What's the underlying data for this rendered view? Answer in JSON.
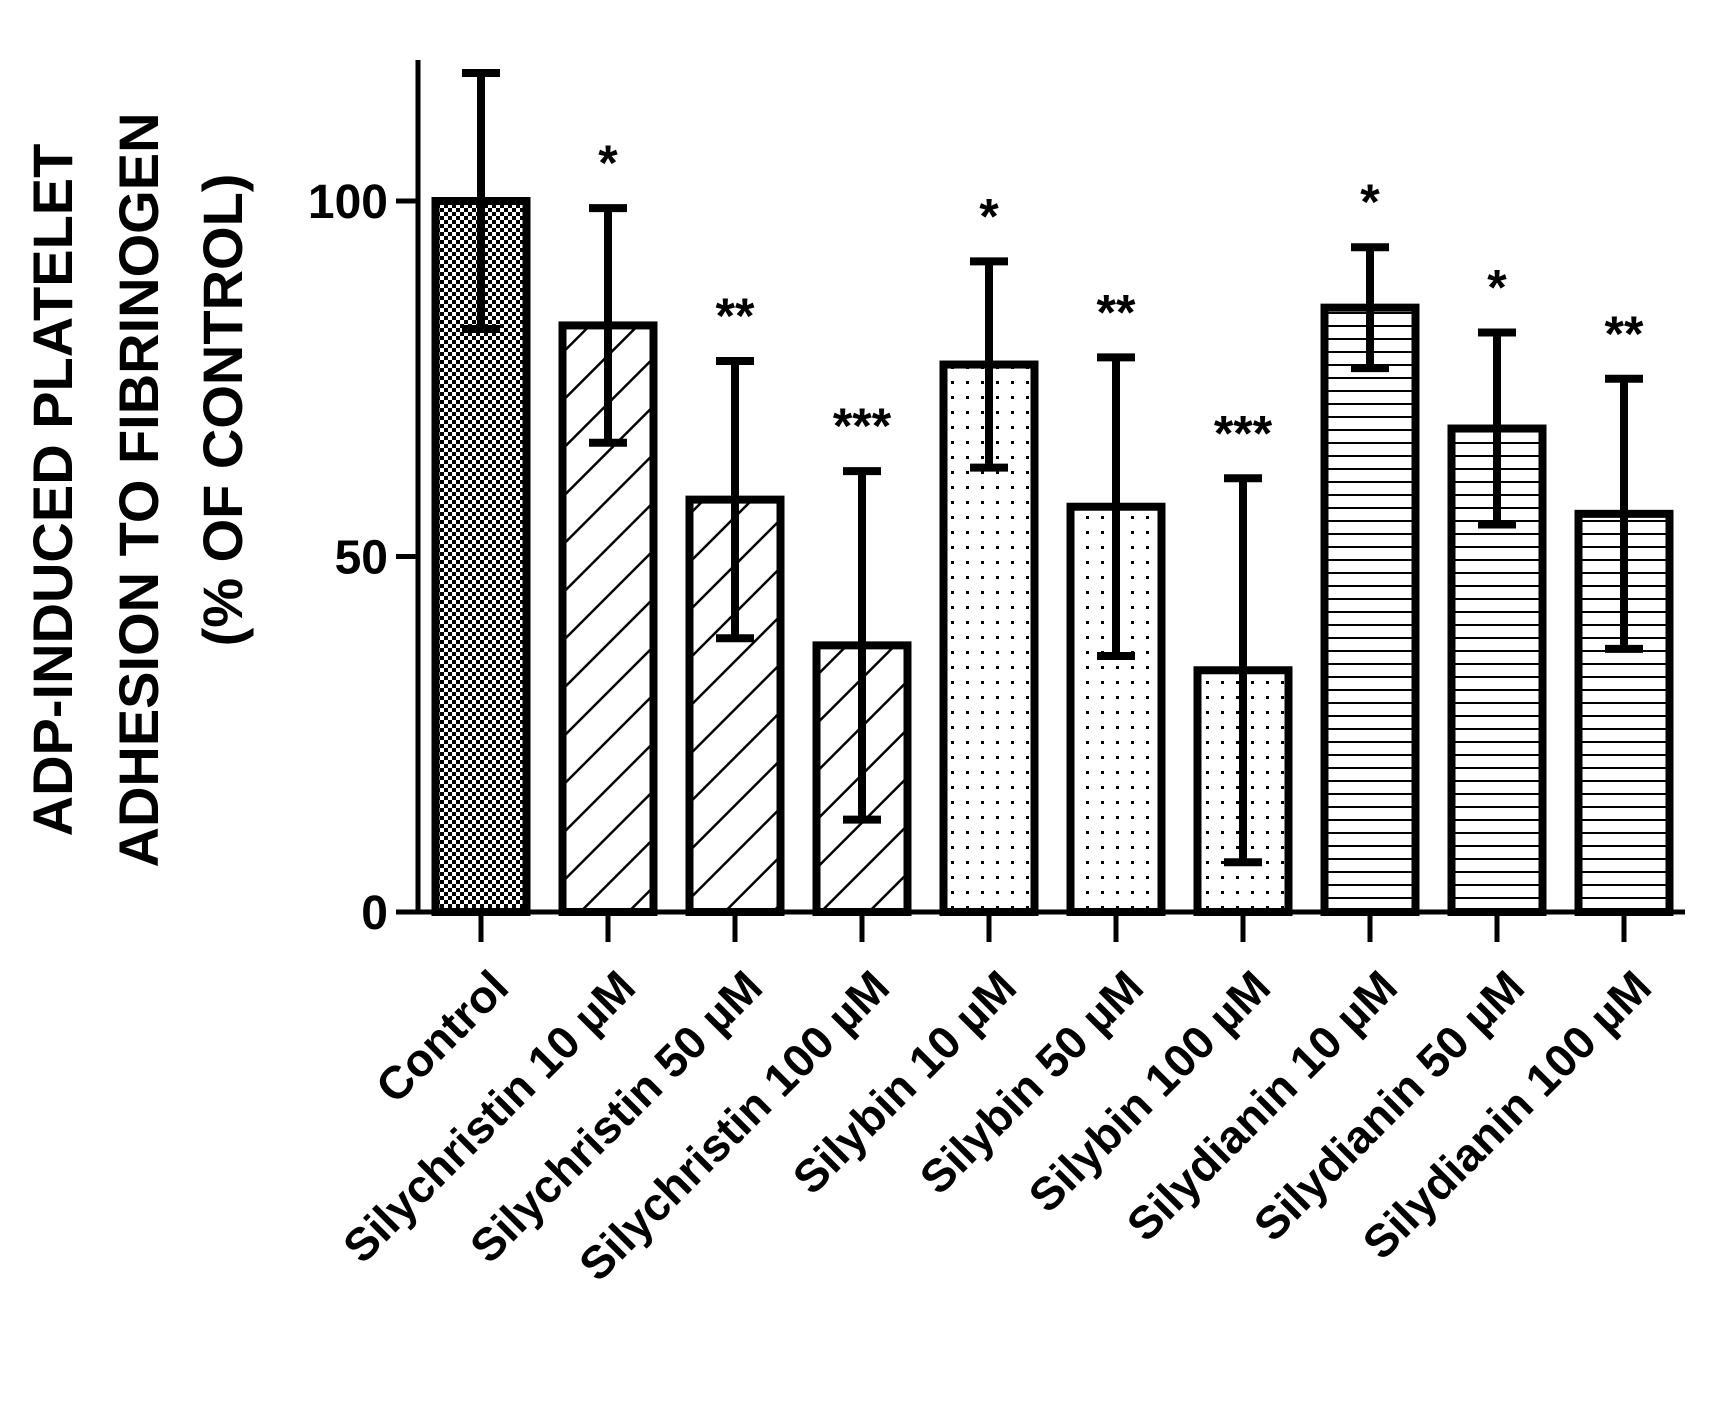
{
  "chart_data": {
    "type": "bar",
    "title": "",
    "xlabel": "",
    "ylabel_lines": [
      "ADP-INDUCED PLATELET",
      "ADHESION TO FIBRINOGEN",
      "(% OF CONTROL)"
    ],
    "ylim": [
      0,
      120
    ],
    "yticks": [
      0,
      50,
      100
    ],
    "categories": [
      "Control",
      "Silychristin 10  µM",
      "Silychristin 50  µM",
      "Silychristin 100  µM",
      "Silybin 10  µM",
      "Silybin 50  µM",
      "Silybin 100  µM",
      "Silydianin 10  µM",
      "Silydianin 50  µM",
      "Silydianin 100  µM"
    ],
    "values": [
      100,
      82.5,
      58,
      37.5,
      77,
      57,
      34,
      85,
      68,
      56
    ],
    "errors": [
      18,
      16.5,
      19.5,
      24.5,
      14.5,
      21,
      27,
      8.5,
      13.5,
      19
    ],
    "significance": [
      "",
      "*",
      "**",
      "***",
      "*",
      "**",
      "***",
      "*",
      "*",
      "**"
    ],
    "patterns": [
      "checker",
      "diagonal",
      "diagonal",
      "diagonal",
      "dots",
      "dots",
      "dots",
      "horizontal",
      "horizontal",
      "horizontal"
    ]
  }
}
